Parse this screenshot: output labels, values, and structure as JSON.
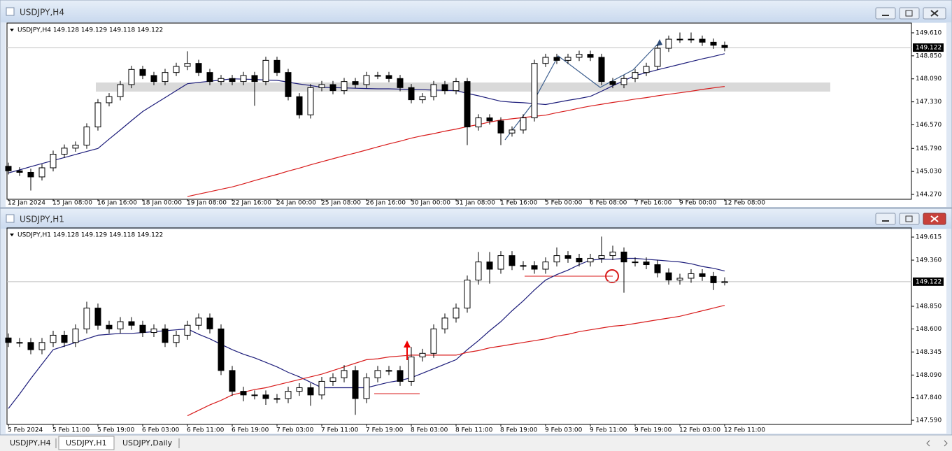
{
  "windows": [
    {
      "title": "USDJPY,H4"
    },
    {
      "title": "USDJPY,H1"
    }
  ],
  "tabs": [
    "USDJPY,H4",
    "USDJPY,H1",
    "USDJPY,Daily"
  ],
  "chart_data": [
    {
      "type": "candlestick",
      "title": "USDJPY,H4 149.128 149.129 149.118 149.122",
      "categories": [
        "12 Jan 2024",
        null,
        null,
        null,
        "15 Jan 08:00",
        null,
        null,
        null,
        "16 Jan 16:00",
        null,
        null,
        null,
        "18 Jan 00:00",
        null,
        null,
        null,
        "19 Jan 08:00",
        null,
        null,
        null,
        "22 Jan 16:00",
        null,
        null,
        null,
        "24 Jan 00:00",
        null,
        null,
        null,
        "25 Jan 08:00",
        null,
        null,
        null,
        "26 Jan 16:00",
        null,
        null,
        null,
        "30 Jan 00:00",
        null,
        null,
        null,
        "31 Jan 08:00",
        null,
        null,
        null,
        "1 Feb 16:00",
        null,
        null,
        null,
        "5 Feb 00:00",
        null,
        null,
        null,
        "6 Feb 08:00",
        null,
        null,
        null,
        "7 Feb 16:00",
        null,
        null,
        null,
        "9 Feb 00:00",
        null,
        null,
        null,
        "12 Feb 08:00"
      ],
      "open": [
        145.2,
        145.05,
        145.0,
        144.85,
        145.15,
        145.6,
        145.8,
        145.9,
        146.5,
        147.3,
        147.5,
        147.9,
        148.4,
        148.2,
        148.0,
        148.3,
        148.5,
        148.6,
        148.3,
        148.0,
        148.1,
        148.0,
        148.2,
        148.0,
        148.7,
        148.3,
        147.5,
        146.9,
        147.8,
        147.9,
        147.7,
        148.0,
        147.9,
        148.2,
        148.2,
        148.1,
        147.8,
        147.4,
        147.5,
        147.9,
        147.7,
        148.0,
        146.5,
        146.8,
        146.7,
        146.3,
        146.4,
        146.8,
        148.6,
        148.8,
        148.7,
        148.8,
        148.9,
        148.8,
        148.0,
        147.9,
        148.1,
        148.3,
        148.5,
        149.1,
        149.4,
        149.4,
        149.4,
        149.3,
        149.2
      ],
      "high": [
        145.32,
        145.17,
        145.12,
        145.27,
        145.72,
        145.92,
        146.02,
        146.62,
        147.42,
        147.62,
        148.02,
        148.52,
        148.52,
        148.32,
        148.42,
        148.62,
        149.0,
        148.72,
        148.42,
        148.22,
        148.22,
        148.32,
        148.32,
        148.82,
        148.82,
        148.42,
        147.62,
        147.92,
        148.02,
        148.02,
        148.12,
        148.12,
        148.32,
        148.32,
        148.32,
        148.22,
        147.92,
        147.62,
        148.02,
        148.02,
        148.12,
        148.12,
        146.92,
        146.92,
        146.82,
        146.52,
        146.92,
        148.72,
        148.92,
        148.92,
        148.92,
        149.02,
        149.02,
        148.92,
        148.12,
        148.22,
        148.42,
        148.62,
        149.22,
        149.52,
        149.62,
        149.62,
        149.52,
        149.42,
        149.32
      ],
      "low": [
        144.93,
        144.88,
        144.4,
        144.73,
        145.03,
        145.48,
        145.68,
        145.78,
        146.38,
        147.18,
        147.38,
        147.78,
        148.08,
        147.88,
        147.88,
        148.18,
        148.38,
        148.18,
        147.88,
        147.88,
        147.88,
        147.88,
        147.2,
        147.88,
        148.18,
        147.38,
        146.78,
        146.78,
        147.68,
        147.58,
        147.58,
        147.78,
        147.78,
        148.08,
        147.98,
        147.68,
        147.28,
        147.28,
        147.38,
        147.58,
        147.58,
        145.9,
        146.38,
        146.58,
        145.9,
        146.18,
        146.28,
        146.68,
        148.48,
        148.58,
        148.58,
        148.68,
        148.68,
        147.88,
        147.78,
        147.78,
        147.98,
        148.18,
        148.38,
        148.98,
        149.28,
        149.28,
        149.18,
        149.08,
        149.0
      ],
      "close": [
        145.05,
        145.0,
        144.85,
        145.15,
        145.6,
        145.8,
        145.9,
        146.5,
        147.3,
        147.5,
        147.9,
        148.4,
        148.2,
        148.0,
        148.3,
        148.5,
        148.6,
        148.3,
        148.0,
        148.1,
        148.0,
        148.2,
        148.0,
        148.7,
        148.3,
        147.5,
        146.9,
        147.8,
        147.9,
        147.7,
        148.0,
        147.9,
        148.2,
        148.2,
        148.1,
        147.8,
        147.4,
        147.5,
        147.9,
        147.7,
        148.0,
        146.5,
        146.8,
        146.7,
        146.3,
        146.4,
        146.8,
        148.6,
        148.8,
        148.7,
        148.8,
        148.9,
        148.8,
        148.0,
        147.9,
        148.1,
        148.3,
        148.5,
        149.1,
        149.4,
        149.4,
        149.4,
        149.3,
        149.2,
        149.122
      ],
      "lines": [
        {
          "color": "#1c1c7a",
          "values": [
            144.98,
            145.08,
            145.19,
            145.29,
            145.39,
            145.49,
            145.59,
            145.69,
            145.79,
            146.1,
            146.4,
            146.71,
            147.01,
            147.24,
            147.47,
            147.7,
            147.93,
            147.97,
            148.01,
            148.05,
            148.09,
            148.08,
            148.07,
            148.05,
            148.04,
            147.98,
            147.92,
            147.87,
            147.81,
            147.8,
            147.79,
            147.78,
            147.77,
            147.76,
            147.76,
            147.75,
            147.74,
            147.73,
            147.72,
            147.71,
            147.7,
            147.61,
            147.53,
            147.44,
            147.35,
            147.32,
            147.3,
            147.27,
            147.24,
            147.31,
            147.38,
            147.44,
            147.51,
            147.68,
            147.86,
            148.03,
            148.2,
            148.29,
            148.39,
            148.48,
            148.57,
            148.66,
            148.75,
            148.83,
            148.92
          ]
        },
        {
          "color": "#d81b1b",
          "values": [
            null,
            null,
            null,
            null,
            null,
            null,
            null,
            null,
            null,
            null,
            null,
            null,
            null,
            null,
            null,
            null,
            144.2,
            144.28,
            144.36,
            144.44,
            144.52,
            144.62,
            144.73,
            144.83,
            144.93,
            145.04,
            145.14,
            145.25,
            145.35,
            145.45,
            145.55,
            145.64,
            145.74,
            145.84,
            145.94,
            146.03,
            146.13,
            146.21,
            146.28,
            146.36,
            146.43,
            146.51,
            146.58,
            146.66,
            146.73,
            146.77,
            146.81,
            146.85,
            146.89,
            146.97,
            147.04,
            147.12,
            147.19,
            147.25,
            147.31,
            147.36,
            147.42,
            147.47,
            147.53,
            147.58,
            147.63,
            147.68,
            147.74,
            147.79,
            147.84
          ]
        }
      ],
      "last_price": {
        "value": 149.122,
        "label": "149.122"
      },
      "ylim": [
        144.11,
        149.84
      ],
      "yticks": [
        {
          "value": 149.61,
          "label": "149.610"
        },
        {
          "value": 148.85,
          "label": "148.850"
        },
        {
          "value": 148.09,
          "label": "148.090"
        },
        {
          "value": 147.33,
          "label": "147.330"
        },
        {
          "value": 146.57,
          "label": "146.570"
        },
        {
          "value": 145.79,
          "label": "145.790"
        },
        {
          "value": 145.03,
          "label": "145.030"
        },
        {
          "value": 144.27,
          "label": "144.270"
        }
      ]
    },
    {
      "type": "candlestick",
      "title": "USDJPY,H1 149.128 149.129 149.118 149.122",
      "categories": [
        "5 Feb 2024",
        null,
        null,
        null,
        "5 Feb 11:00",
        null,
        null,
        null,
        "5 Feb 19:00",
        null,
        null,
        null,
        "6 Feb 03:00",
        null,
        null,
        null,
        "6 Feb 11:00",
        null,
        null,
        null,
        "6 Feb 19:00",
        null,
        null,
        null,
        "7 Feb 03:00",
        null,
        null,
        null,
        "7 Feb 11:00",
        null,
        null,
        null,
        "7 Feb 19:00",
        null,
        null,
        null,
        "8 Feb 03:00",
        null,
        null,
        null,
        "8 Feb 11:00",
        null,
        null,
        null,
        "8 Feb 19:00",
        null,
        null,
        null,
        "9 Feb 03:00",
        null,
        null,
        null,
        "9 Feb 11:00",
        null,
        null,
        null,
        "9 Feb 19:00",
        null,
        null,
        null,
        "12 Feb 03:00",
        null,
        null,
        null,
        "12 Feb 11:00"
      ],
      "open": [
        148.5,
        148.45,
        148.45,
        148.37,
        148.45,
        148.53,
        148.45,
        148.6,
        148.83,
        148.64,
        148.6,
        148.68,
        148.64,
        148.56,
        148.6,
        148.45,
        148.53,
        148.64,
        148.72,
        148.6,
        148.14,
        147.91,
        147.87,
        147.87,
        147.83,
        147.83,
        147.91,
        147.95,
        147.87,
        148.02,
        148.06,
        148.14,
        147.83,
        148.06,
        148.14,
        148.14,
        148.02,
        148.29,
        148.33,
        148.6,
        148.72,
        148.83,
        149.14,
        149.34,
        149.26,
        149.41,
        149.3,
        149.3,
        149.26,
        149.34,
        149.41,
        149.38,
        149.34,
        149.38,
        149.41,
        149.45,
        149.34,
        149.34,
        149.31,
        149.22,
        149.14,
        149.16,
        149.21,
        149.18,
        149.11
      ],
      "high": [
        148.55,
        148.5,
        148.5,
        148.5,
        148.58,
        148.58,
        148.65,
        148.9,
        148.88,
        148.69,
        148.73,
        148.73,
        148.69,
        148.65,
        148.65,
        148.58,
        148.69,
        148.77,
        148.77,
        148.65,
        148.19,
        147.96,
        147.92,
        147.92,
        147.88,
        147.96,
        148.0,
        148.0,
        148.07,
        148.11,
        148.2,
        148.19,
        148.11,
        148.19,
        148.19,
        148.19,
        148.4,
        148.38,
        148.65,
        148.77,
        148.88,
        149.19,
        149.45,
        149.45,
        149.46,
        149.46,
        149.35,
        149.35,
        149.39,
        149.5,
        149.46,
        149.43,
        149.43,
        149.62,
        149.52,
        149.5,
        149.39,
        149.39,
        149.36,
        149.27,
        149.21,
        149.26,
        149.26,
        149.23,
        149.17
      ],
      "low": [
        148.4,
        148.4,
        148.32,
        148.32,
        148.4,
        148.4,
        148.4,
        148.55,
        148.59,
        148.55,
        148.55,
        148.59,
        148.51,
        148.51,
        148.4,
        148.4,
        148.48,
        148.59,
        148.55,
        148.09,
        147.86,
        147.8,
        147.82,
        147.76,
        147.78,
        147.78,
        147.86,
        147.75,
        147.82,
        147.97,
        148.01,
        147.65,
        147.78,
        148.01,
        148.09,
        147.97,
        147.97,
        148.24,
        148.28,
        148.55,
        148.67,
        148.78,
        149.09,
        149.1,
        149.21,
        149.25,
        149.25,
        149.21,
        149.21,
        149.29,
        149.33,
        149.29,
        149.29,
        149.33,
        149.36,
        149.0,
        149.29,
        149.26,
        149.17,
        149.09,
        149.09,
        149.11,
        149.13,
        149.03,
        149.08
      ],
      "close": [
        148.45,
        148.45,
        148.37,
        148.45,
        148.53,
        148.45,
        148.6,
        148.83,
        148.64,
        148.6,
        148.68,
        148.64,
        148.56,
        148.6,
        148.45,
        148.53,
        148.64,
        148.72,
        148.6,
        148.14,
        147.91,
        147.87,
        147.87,
        147.83,
        147.83,
        147.91,
        147.95,
        147.87,
        148.02,
        148.06,
        148.14,
        147.83,
        148.06,
        148.14,
        148.14,
        148.02,
        148.29,
        148.33,
        148.6,
        148.72,
        148.83,
        149.14,
        149.34,
        149.26,
        149.41,
        149.3,
        149.3,
        149.26,
        149.34,
        149.41,
        149.38,
        149.34,
        149.38,
        149.41,
        149.45,
        149.34,
        149.34,
        149.31,
        149.22,
        149.14,
        149.16,
        149.21,
        149.18,
        149.11,
        149.122
      ],
      "lines": [
        {
          "color": "#1c1c7a",
          "values": [
            147.72,
            147.88,
            148.05,
            148.21,
            148.37,
            148.41,
            148.45,
            148.49,
            148.53,
            148.54,
            148.55,
            148.55,
            148.56,
            148.57,
            148.58,
            148.59,
            148.6,
            148.54,
            148.49,
            148.43,
            148.37,
            148.32,
            148.28,
            148.23,
            148.18,
            148.12,
            148.07,
            148.01,
            147.95,
            147.95,
            147.95,
            147.95,
            147.95,
            147.98,
            148.01,
            148.03,
            148.06,
            148.11,
            148.16,
            148.21,
            148.26,
            148.37,
            148.47,
            148.58,
            148.68,
            148.8,
            148.91,
            149.03,
            149.14,
            149.2,
            149.25,
            149.31,
            149.36,
            149.37,
            149.37,
            149.38,
            149.38,
            149.37,
            149.36,
            149.35,
            149.34,
            149.32,
            149.29,
            149.27,
            149.24
          ]
        },
        {
          "color": "#d81b1b",
          "values": [
            null,
            null,
            null,
            null,
            null,
            null,
            null,
            null,
            null,
            null,
            null,
            null,
            null,
            null,
            null,
            null,
            147.64,
            147.7,
            147.76,
            147.81,
            147.87,
            147.9,
            147.93,
            147.95,
            147.98,
            148.01,
            148.04,
            148.07,
            148.1,
            148.14,
            148.18,
            148.22,
            148.26,
            148.27,
            148.29,
            148.3,
            148.31,
            148.31,
            148.31,
            148.31,
            148.31,
            148.34,
            148.36,
            148.39,
            148.41,
            148.43,
            148.45,
            148.47,
            148.49,
            148.52,
            148.54,
            148.57,
            148.59,
            148.61,
            148.63,
            148.64,
            148.66,
            148.68,
            148.7,
            148.72,
            148.74,
            148.77,
            148.8,
            148.83,
            148.86
          ]
        }
      ],
      "last_price": {
        "value": 149.122,
        "label": "149.122"
      },
      "ylim": [
        147.544,
        149.685
      ],
      "yticks": [
        {
          "value": 149.615,
          "label": "149.615"
        },
        {
          "value": 149.36,
          "label": "149.360"
        },
        {
          "value": 148.85,
          "label": "148.850"
        },
        {
          "value": 148.6,
          "label": "148.600"
        },
        {
          "value": 148.345,
          "label": "148.345"
        },
        {
          "value": 148.09,
          "label": "148.090"
        },
        {
          "value": 147.84,
          "label": "147.840"
        },
        {
          "value": 147.59,
          "label": "147.590"
        }
      ]
    }
  ]
}
